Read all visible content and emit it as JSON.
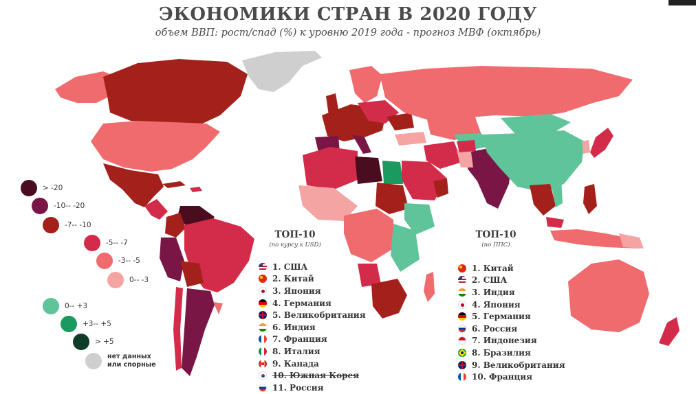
{
  "header": {
    "title": "ЭКОНОМИКИ СТРАН В 2020 ГОДУ",
    "subtitle": "объем ВВП: рост/спад (%) к уровню 2019 года - прогноз МВФ (октябрь)"
  },
  "legend": [
    {
      "label": ">  -20",
      "color": "#4a0d1f"
    },
    {
      "label": "-10--  -20",
      "color": "#7a1645"
    },
    {
      "label": "-7--  -10",
      "color": "#a3201b"
    },
    {
      "label": "-5--  -7",
      "color": "#d32c4a"
    },
    {
      "label": "-3--  -5",
      "color": "#ef6b6e"
    },
    {
      "label": "0--  -3",
      "color": "#f4a5a3"
    },
    {
      "label": "0--  +3",
      "color": "#5fc49a"
    },
    {
      "label": "+3--  +5",
      "color": "#1a9a5e"
    },
    {
      "label": ">  +5",
      "color": "#0f3d2a"
    },
    {
      "label": "нет данных\nили спорные",
      "color": "#cfcfcf"
    }
  ],
  "top_usd": {
    "title": "ТОП-10",
    "note": "(по курсу к USD)",
    "items": [
      {
        "label": "1. США",
        "flag": "usa-flag-icon"
      },
      {
        "label": "2. Китай",
        "flag": "china-flag-icon"
      },
      {
        "label": "3. Япония",
        "flag": "japan-flag-icon"
      },
      {
        "label": "4. Германия",
        "flag": "germany-flag-icon"
      },
      {
        "label": "5. Великобритания",
        "flag": "uk-flag-icon"
      },
      {
        "label": "6. Индия",
        "flag": "india-flag-icon"
      },
      {
        "label": "7. Франция",
        "flag": "france-flag-icon"
      },
      {
        "label": "8. Италия",
        "flag": "italy-flag-icon"
      },
      {
        "label": "9. Канада",
        "flag": "canada-flag-icon"
      },
      {
        "label": "10. Южная Корея",
        "flag": "south-korea-flag-icon"
      },
      {
        "label": "11. Россия",
        "flag": "russia-flag-icon"
      }
    ]
  },
  "top_ppp": {
    "title": "ТОП-10",
    "note": "(по ППС)",
    "items": [
      {
        "label": "1. Китай",
        "flag": "china-flag-icon"
      },
      {
        "label": "2. США",
        "flag": "usa-flag-icon"
      },
      {
        "label": "3. Индия",
        "flag": "india-flag-icon"
      },
      {
        "label": "4. Япония",
        "flag": "japan-flag-icon"
      },
      {
        "label": "5. Германия",
        "flag": "germany-flag-icon"
      },
      {
        "label": "6. Россия",
        "flag": "russia-flag-icon"
      },
      {
        "label": "7. Индонезия",
        "flag": "indonesia-flag-icon"
      },
      {
        "label": "8. Бразилия",
        "flag": "brazil-flag-icon"
      },
      {
        "label": "9. Великобритания",
        "flag": "uk-flag-icon"
      },
      {
        "label": "10. Франция",
        "flag": "france-flag-icon"
      }
    ]
  }
}
